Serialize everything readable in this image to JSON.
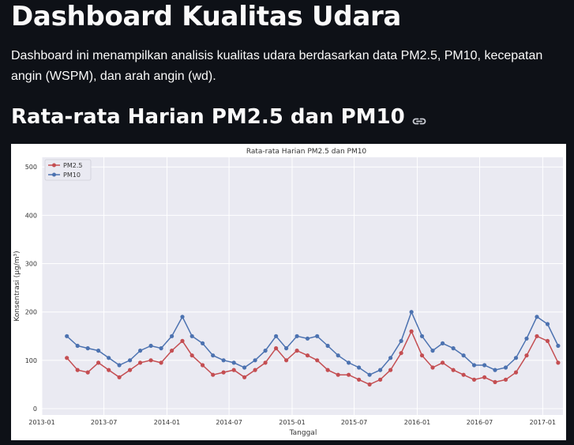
{
  "page": {
    "title": "Dashboard Kualitas Udara",
    "description": "Dashboard ini menampilkan analisis kualitas udara berdasarkan data PM2.5, PM10, kecepatan angin (WSPM), dan arah angin (wd).",
    "section_title": "Rata-rata Harian PM2.5 dan PM10",
    "section_link_icon": "link-icon"
  },
  "chart_data": {
    "type": "line",
    "title": "Rata-rata Harian PM2.5 dan PM10",
    "xlabel": "Tanggal",
    "ylabel": "Konsentrasi (µg/m³)",
    "xlim": [
      "2013-01-01",
      "2017-03-01"
    ],
    "ylim": [
      0,
      520
    ],
    "yticks": [
      0,
      100,
      200,
      300,
      400,
      500
    ],
    "xticks": [
      "2013-01",
      "2013-07",
      "2014-01",
      "2014-07",
      "2015-01",
      "2015-07",
      "2016-01",
      "2016-07",
      "2017-01"
    ],
    "legend_position": "top-left",
    "grid": true,
    "background": "#eaeaf2",
    "series": [
      {
        "name": "PM2.5",
        "color": "#c44e52",
        "x": [
          "2013-03-15",
          "2013-04-15",
          "2013-05-15",
          "2013-06-15",
          "2013-07-15",
          "2013-08-15",
          "2013-09-15",
          "2013-10-15",
          "2013-11-15",
          "2013-12-15",
          "2014-01-15",
          "2014-02-15",
          "2014-03-15",
          "2014-04-15",
          "2014-05-15",
          "2014-06-15",
          "2014-07-15",
          "2014-08-15",
          "2014-09-15",
          "2014-10-15",
          "2014-11-15",
          "2014-12-15",
          "2015-01-15",
          "2015-02-15",
          "2015-03-15",
          "2015-04-15",
          "2015-05-15",
          "2015-06-15",
          "2015-07-15",
          "2015-08-15",
          "2015-09-15",
          "2015-10-15",
          "2015-11-15",
          "2015-12-15",
          "2016-01-15",
          "2016-02-15",
          "2016-03-15",
          "2016-04-15",
          "2016-05-15",
          "2016-06-15",
          "2016-07-15",
          "2016-08-15",
          "2016-09-15",
          "2016-10-15",
          "2016-11-15",
          "2016-12-15",
          "2017-01-15",
          "2017-02-15"
        ],
        "values": [
          105,
          80,
          75,
          95,
          80,
          65,
          80,
          95,
          100,
          95,
          120,
          140,
          110,
          90,
          70,
          75,
          80,
          65,
          80,
          95,
          125,
          100,
          120,
          110,
          100,
          80,
          70,
          70,
          60,
          50,
          60,
          80,
          115,
          160,
          110,
          85,
          95,
          80,
          70,
          60,
          65,
          55,
          60,
          75,
          110,
          150,
          140,
          95
        ]
      },
      {
        "name": "PM10",
        "color": "#4c72b0",
        "x": [
          "2013-03-15",
          "2013-04-15",
          "2013-05-15",
          "2013-06-15",
          "2013-07-15",
          "2013-08-15",
          "2013-09-15",
          "2013-10-15",
          "2013-11-15",
          "2013-12-15",
          "2014-01-15",
          "2014-02-15",
          "2014-03-15",
          "2014-04-15",
          "2014-05-15",
          "2014-06-15",
          "2014-07-15",
          "2014-08-15",
          "2014-09-15",
          "2014-10-15",
          "2014-11-15",
          "2014-12-15",
          "2015-01-15",
          "2015-02-15",
          "2015-03-15",
          "2015-04-15",
          "2015-05-15",
          "2015-06-15",
          "2015-07-15",
          "2015-08-15",
          "2015-09-15",
          "2015-10-15",
          "2015-11-15",
          "2015-12-15",
          "2016-01-15",
          "2016-02-15",
          "2016-03-15",
          "2016-04-15",
          "2016-05-15",
          "2016-06-15",
          "2016-07-15",
          "2016-08-15",
          "2016-09-15",
          "2016-10-15",
          "2016-11-15",
          "2016-12-15",
          "2017-01-15",
          "2017-02-15"
        ],
        "values": [
          150,
          130,
          125,
          120,
          105,
          90,
          100,
          120,
          130,
          125,
          150,
          190,
          150,
          135,
          110,
          100,
          95,
          85,
          100,
          120,
          150,
          125,
          150,
          145,
          150,
          130,
          110,
          95,
          85,
          70,
          80,
          105,
          140,
          200,
          150,
          120,
          135,
          125,
          110,
          90,
          90,
          80,
          85,
          105,
          145,
          190,
          175,
          130
        ]
      }
    ]
  }
}
